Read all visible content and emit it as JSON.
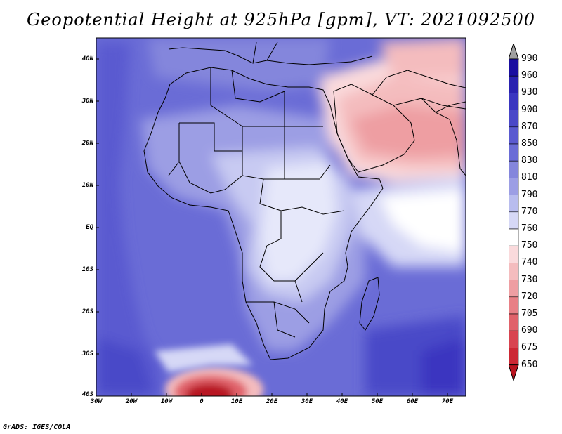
{
  "title": "Geopotential Height at 925hPa [gpm], VT: 2021092500",
  "footer": "GrADS: IGES/COLA",
  "lat_labels": [
    "40N",
    "30N",
    "20N",
    "10N",
    "EQ",
    "10S",
    "20S",
    "30S",
    "40S"
  ],
  "lon_labels": [
    "30W",
    "20W",
    "10W",
    "0",
    "10E",
    "20E",
    "30E",
    "40E",
    "50E",
    "60E",
    "70E"
  ],
  "colorbar": {
    "levels": [
      "990",
      "960",
      "930",
      "900",
      "870",
      "850",
      "830",
      "810",
      "790",
      "770",
      "760",
      "750",
      "740",
      "730",
      "720",
      "705",
      "690",
      "675",
      "650"
    ],
    "colors": [
      "#1a0ea0",
      "#2a22b0",
      "#3a36c0",
      "#4a48c8",
      "#5a5ad0",
      "#6a6cd6",
      "#8486dc",
      "#9c9ee4",
      "#b8bcee",
      "#d6d8f6",
      "#ffffff",
      "#fadadc",
      "#f4bcbe",
      "#ee9ea2",
      "#e88086",
      "#e0626a",
      "#d84450",
      "#cc2834",
      "#b81420"
    ]
  },
  "map_colors": {
    "deep": "#4a48c8",
    "mid": "#6a6cd6",
    "light": "#9c9ee4",
    "pale": "#c8caf2",
    "white": "#ffffff",
    "pink": "#f4bcbe",
    "red": "#e88086",
    "darkred": "#b81420",
    "land_line": "#000000"
  }
}
